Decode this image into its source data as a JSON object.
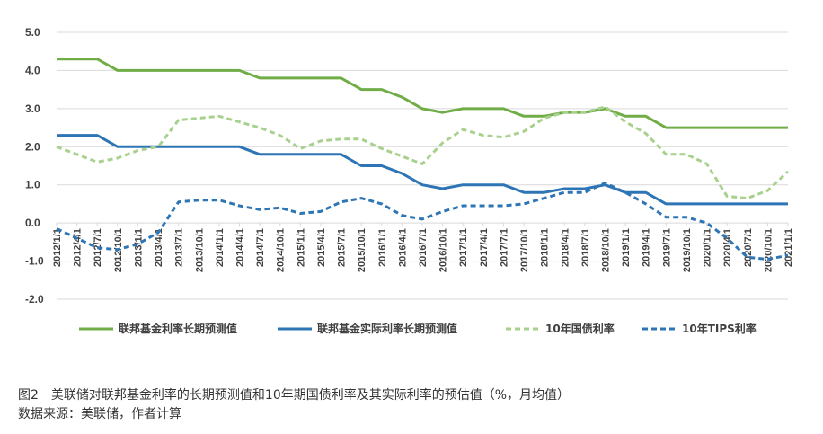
{
  "chart_data": {
    "type": "line",
    "x": [
      "2012/1/1",
      "2012/4/1",
      "2012/7/1",
      "2012/10/1",
      "2013/1/1",
      "2013/4/1",
      "2013/7/1",
      "2013/10/1",
      "2014/1/1",
      "2014/4/1",
      "2014/7/1",
      "2014/10/1",
      "2015/1/1",
      "2015/4/1",
      "2015/7/1",
      "2015/10/1",
      "2016/1/1",
      "2016/4/1",
      "2016/7/1",
      "2016/10/1",
      "2017/1/1",
      "2017/4/1",
      "2017/7/1",
      "2017/10/1",
      "2018/1/1",
      "2018/4/1",
      "2018/7/1",
      "2018/10/1",
      "2019/1/1",
      "2019/4/1",
      "2019/7/1",
      "2019/10/1",
      "2020/1/1",
      "2020/4/1",
      "2020/7/1",
      "2020/10/1",
      "2021/1/1"
    ],
    "ylim": [
      -2.0,
      5.0
    ],
    "yticks": [
      "5.0",
      "4.0",
      "3.0",
      "2.0",
      "1.0",
      "0.0",
      "-1.0",
      "-2.0"
    ],
    "series": [
      {
        "name": "联邦基金利率长期预测值",
        "color": "#70AD47",
        "style": "solid",
        "values": [
          4.3,
          4.3,
          4.3,
          4.0,
          4.0,
          4.0,
          4.0,
          4.0,
          4.0,
          4.0,
          3.8,
          3.8,
          3.8,
          3.8,
          3.8,
          3.5,
          3.5,
          3.3,
          3.0,
          2.9,
          3.0,
          3.0,
          3.0,
          2.8,
          2.8,
          2.9,
          2.9,
          3.0,
          2.8,
          2.8,
          2.5,
          2.5,
          2.5,
          2.5,
          2.5,
          2.5,
          2.5
        ]
      },
      {
        "name": "联邦基金实际利率长期预测值",
        "color": "#2E75B6",
        "style": "solid",
        "values": [
          2.3,
          2.3,
          2.3,
          2.0,
          2.0,
          2.0,
          2.0,
          2.0,
          2.0,
          2.0,
          1.8,
          1.8,
          1.8,
          1.8,
          1.8,
          1.5,
          1.5,
          1.3,
          1.0,
          0.9,
          1.0,
          1.0,
          1.0,
          0.8,
          0.8,
          0.9,
          0.9,
          1.0,
          0.8,
          0.8,
          0.5,
          0.5,
          0.5,
          0.5,
          0.5,
          0.5,
          0.5
        ]
      },
      {
        "name": "10年国债利率",
        "color": "#A9D18E",
        "style": "dashed",
        "values": [
          2.0,
          1.8,
          1.6,
          1.7,
          1.9,
          2.0,
          2.7,
          2.75,
          2.8,
          2.65,
          2.5,
          2.3,
          1.95,
          2.15,
          2.2,
          2.2,
          1.95,
          1.75,
          1.55,
          2.1,
          2.45,
          2.3,
          2.25,
          2.4,
          2.75,
          2.9,
          2.9,
          3.05,
          2.65,
          2.35,
          1.8,
          1.8,
          1.55,
          0.7,
          0.65,
          0.85,
          1.35
        ]
      },
      {
        "name": "10年TIPS利率",
        "color": "#2E75B6",
        "style": "dashed",
        "values": [
          -0.15,
          -0.4,
          -0.65,
          -0.7,
          -0.55,
          -0.25,
          0.55,
          0.6,
          0.6,
          0.45,
          0.35,
          0.4,
          0.25,
          0.3,
          0.55,
          0.65,
          0.5,
          0.2,
          0.1,
          0.3,
          0.45,
          0.45,
          0.45,
          0.5,
          0.65,
          0.8,
          0.8,
          1.05,
          0.8,
          0.5,
          0.15,
          0.15,
          0.0,
          -0.4,
          -0.9,
          -0.95,
          -0.85
        ]
      }
    ],
    "grid": true,
    "legend_position": "bottom"
  },
  "caption": {
    "title": "图2　美联储对联邦基金利率的长期预测值和10年期国债利率及其实际利率的预估值（%，月均值）",
    "source": "数据来源：美联储，作者计算"
  }
}
